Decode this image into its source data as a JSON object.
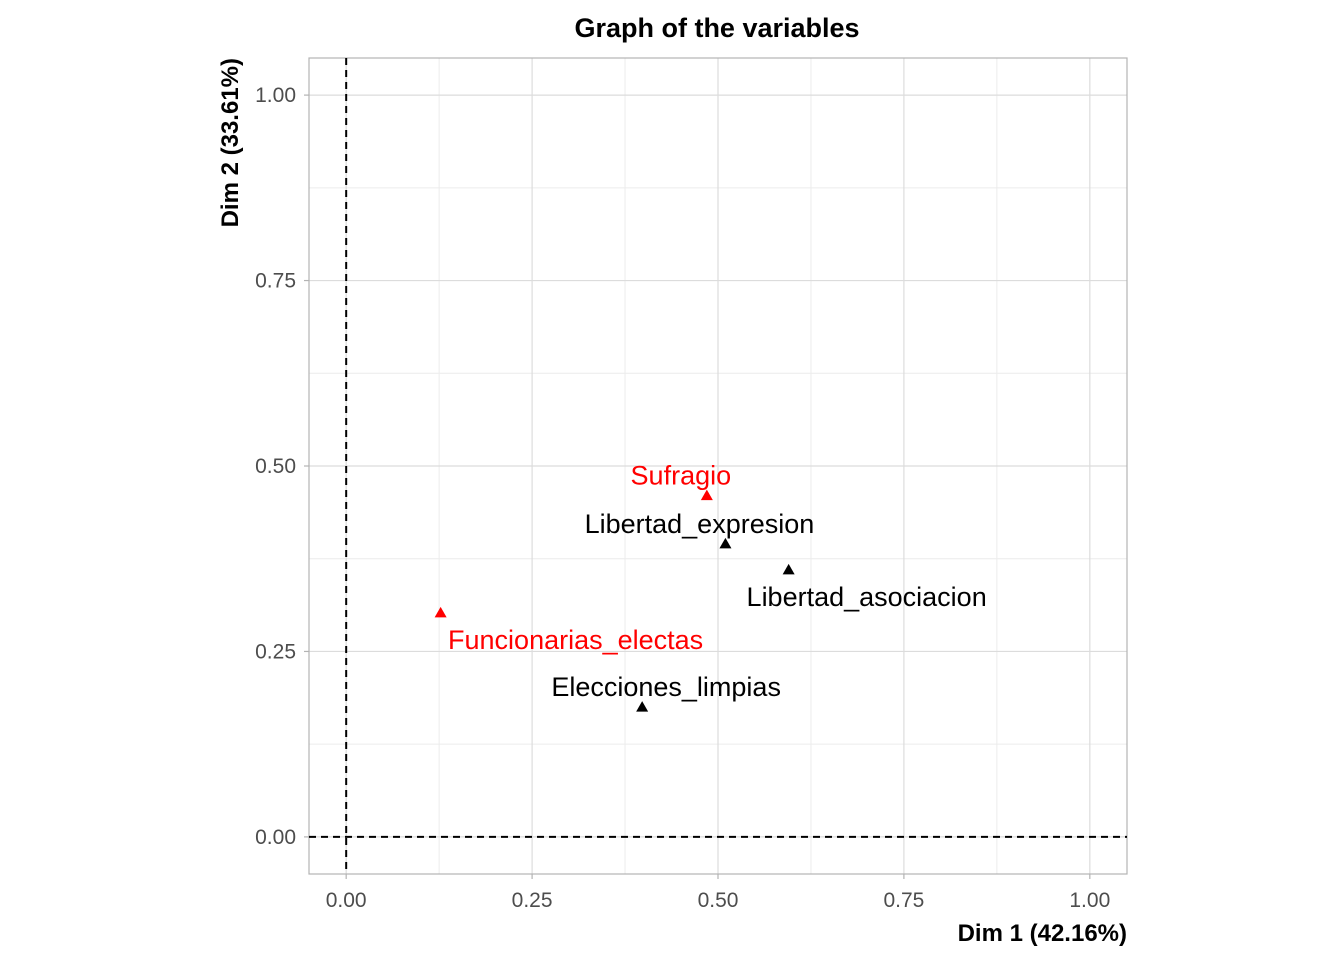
{
  "chart_data": {
    "type": "scatter",
    "title": "Graph of the variables",
    "xlabel": "Dim 1 (42.16%)",
    "ylabel": "Dim 2 (33.61%)",
    "xlim": [
      -0.05,
      1.05
    ],
    "ylim": [
      -0.05,
      1.05
    ],
    "x_ticks": [
      0.0,
      0.25,
      0.5,
      0.75,
      1.0
    ],
    "x_tick_labels": [
      "0.00",
      "0.25",
      "0.50",
      "0.75",
      "1.00"
    ],
    "y_ticks": [
      0.0,
      0.25,
      0.5,
      0.75,
      1.0
    ],
    "y_tick_labels": [
      "0.00",
      "0.25",
      "0.50",
      "0.75",
      "1.00"
    ],
    "reference_lines": {
      "x": 0,
      "y": 0,
      "style": "dashed"
    },
    "grid": true,
    "legend": "none",
    "points": [
      {
        "label": "Sufragio",
        "x": 0.485,
        "y": 0.46,
        "color": "#ff0000"
      },
      {
        "label": "Libertad_expresion",
        "x": 0.51,
        "y": 0.395,
        "color": "#000000"
      },
      {
        "label": "Libertad_asociacion",
        "x": 0.595,
        "y": 0.36,
        "color": "#000000"
      },
      {
        "label": "Funcionarias_electas",
        "x": 0.127,
        "y": 0.302,
        "color": "#ff0000"
      },
      {
        "label": "Elecciones_limpias",
        "x": 0.398,
        "y": 0.175,
        "color": "#000000"
      }
    ]
  }
}
